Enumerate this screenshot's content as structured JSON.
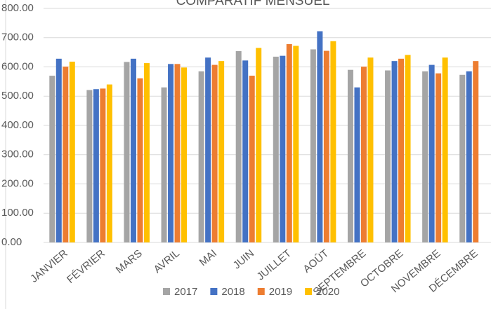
{
  "chart_data": {
    "type": "bar",
    "title": "COMPARATIF MENSUEL",
    "categories": [
      "JANVIER",
      "FÉVRIER",
      "MARS",
      "AVRIL",
      "MAI",
      "JUIN",
      "JUILLET",
      "AOÛT",
      "SEPTEMBRE",
      "OCTOBRE",
      "NOVEMBRE",
      "DÉCEMBRE"
    ],
    "series": [
      {
        "name": "2017",
        "color": "#a5a5a5",
        "values": [
          570,
          521,
          617,
          530,
          585,
          654,
          635,
          660,
          590,
          588,
          585,
          573
        ]
      },
      {
        "name": "2018",
        "color": "#4472c4",
        "values": [
          628,
          524,
          628,
          610,
          632,
          622,
          638,
          722,
          530,
          620,
          607,
          585
        ]
      },
      {
        "name": "2019",
        "color": "#ed7d31",
        "values": [
          601,
          526,
          561,
          610,
          607,
          570,
          678,
          655,
          601,
          628,
          578,
          620
        ]
      },
      {
        "name": "2020",
        "color": "#ffc000",
        "values": [
          618,
          540,
          613,
          598,
          620,
          665,
          672,
          688,
          632,
          641,
          632,
          null
        ]
      }
    ],
    "ylim": [
      0,
      800
    ],
    "yticks": [
      {
        "value": 0,
        "label": "0.00"
      },
      {
        "value": 100,
        "label": "100.00"
      },
      {
        "value": 200,
        "label": "200.00"
      },
      {
        "value": 300,
        "label": "300.00"
      },
      {
        "value": 400,
        "label": "400.00"
      },
      {
        "value": 500,
        "label": "500.00"
      },
      {
        "value": 600,
        "label": "600.00"
      },
      {
        "value": 700,
        "label": "700.00"
      },
      {
        "value": 800,
        "label": "800.00"
      }
    ],
    "grid": true,
    "legend": "bottom"
  }
}
